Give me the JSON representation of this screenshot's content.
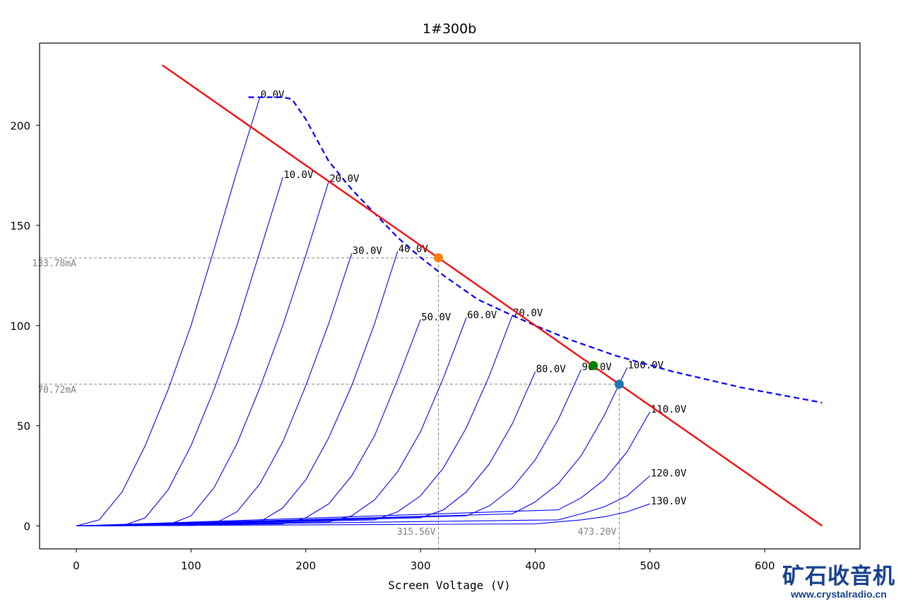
{
  "chart_data": {
    "type": "line",
    "title": "1#300b",
    "xlabel": "Screen Voltage (V)",
    "ylabel": "",
    "xlim": [
      -32,
      683
    ],
    "ylim": [
      -11.5,
      241
    ],
    "x_ticks": [
      0,
      100,
      200,
      300,
      400,
      500,
      600
    ],
    "y_ticks": [
      0,
      50,
      100,
      150,
      200
    ],
    "grid": false,
    "curve_color": "#0000ff",
    "series": [
      {
        "label": "0.0V",
        "x": [
          0,
          20,
          40,
          60,
          80,
          100,
          120,
          140,
          160
        ],
        "y": [
          0,
          3,
          17,
          40,
          68,
          100,
          138,
          177,
          214
        ]
      },
      {
        "label": "10.0V",
        "x": [
          0,
          40,
          60,
          80,
          100,
          120,
          140,
          160,
          180
        ],
        "y": [
          0,
          0,
          4,
          18,
          40,
          68,
          100,
          137,
          174
        ]
      },
      {
        "label": "20.0V",
        "x": [
          0,
          80,
          100,
          120,
          140,
          160,
          180,
          200,
          220
        ],
        "y": [
          0,
          0.5,
          5,
          19,
          41,
          69,
          100,
          135,
          172
        ]
      },
      {
        "label": "30.0V",
        "x": [
          0,
          100,
          120,
          140,
          160,
          180,
          200,
          220,
          240
        ],
        "y": [
          0,
          0.2,
          1,
          7,
          21,
          42,
          70,
          101,
          136
        ]
      },
      {
        "label": "40.0V",
        "x": [
          0,
          140,
          160,
          180,
          200,
          220,
          240,
          260,
          280
        ],
        "y": [
          0,
          0.5,
          2,
          9,
          23,
          44,
          70,
          101,
          137
        ]
      },
      {
        "label": "50.0V",
        "x": [
          0,
          180,
          200,
          220,
          240,
          260,
          280,
          300
        ],
        "y": [
          0,
          1,
          4,
          11,
          25,
          45,
          73,
          103
        ]
      },
      {
        "label": "60.0V",
        "x": [
          0,
          220,
          240,
          260,
          280,
          300,
          320,
          340
        ],
        "y": [
          0,
          2,
          5,
          13,
          27,
          47,
          74,
          104
        ]
      },
      {
        "label": "70.0V",
        "x": [
          0,
          260,
          280,
          300,
          320,
          340,
          360,
          380
        ],
        "y": [
          0,
          3,
          7,
          15,
          29,
          49,
          75,
          105
        ]
      },
      {
        "label": "80.0V",
        "x": [
          0,
          300,
          320,
          340,
          360,
          380,
          400
        ],
        "y": [
          0,
          4,
          8,
          17,
          31,
          51,
          77
        ]
      },
      {
        "label": "90.0V",
        "x": [
          0,
          340,
          360,
          380,
          400,
          420,
          440
        ],
        "y": [
          0,
          5,
          10,
          19,
          33,
          53,
          78
        ]
      },
      {
        "label": "100.0V",
        "x": [
          0,
          380,
          400,
          420,
          440,
          460,
          480
        ],
        "y": [
          0,
          6,
          12,
          21,
          35,
          55,
          79
        ]
      },
      {
        "label": "110.0V",
        "x": [
          0,
          420,
          440,
          460,
          480,
          500
        ],
        "y": [
          0,
          8,
          14,
          23,
          37,
          57
        ]
      },
      {
        "label": "120.0V",
        "x": [
          0,
          420,
          440,
          460,
          480,
          500
        ],
        "y": [
          0,
          3,
          6,
          9.5,
          15,
          25
        ]
      },
      {
        "label": "130.0V",
        "x": [
          0,
          400,
          420,
          440,
          460,
          480,
          500
        ],
        "y": [
          0,
          1,
          2,
          3,
          4.5,
          7,
          11
        ]
      }
    ],
    "dissipation_curve": {
      "color": "#0000ff",
      "style": "dashed",
      "x": [
        150,
        165,
        180,
        188,
        200,
        220,
        240,
        260,
        280,
        300,
        320,
        350,
        380,
        400,
        430,
        470,
        520,
        580,
        650
      ],
      "y": [
        214,
        214,
        214,
        213,
        203,
        182,
        168,
        156,
        144,
        134,
        125,
        113,
        105,
        100,
        93,
        85,
        77,
        69,
        61.5
      ]
    },
    "load_line": {
      "color": "#ff0000",
      "x": [
        75,
        650
      ],
      "y": [
        230,
        0
      ]
    },
    "points": [
      {
        "x": 315.56,
        "y": 133.78,
        "color": "#ff7f0e"
      },
      {
        "x": 450.5,
        "y": 80,
        "color": "#008000"
      },
      {
        "x": 473.2,
        "y": 70.72,
        "color": "#1f77b4"
      }
    ],
    "guides": [
      {
        "x": 315.56,
        "y": 133.78,
        "x_label": "315.56V",
        "y_label": "133.78mA"
      },
      {
        "x": 473.2,
        "y": 70.72,
        "x_label": "473.20V",
        "y_label": "70.72mA"
      }
    ]
  },
  "watermark": {
    "name": "矿石收音机",
    "url": "www.crystalradio.cn",
    "color": "#16418f"
  }
}
